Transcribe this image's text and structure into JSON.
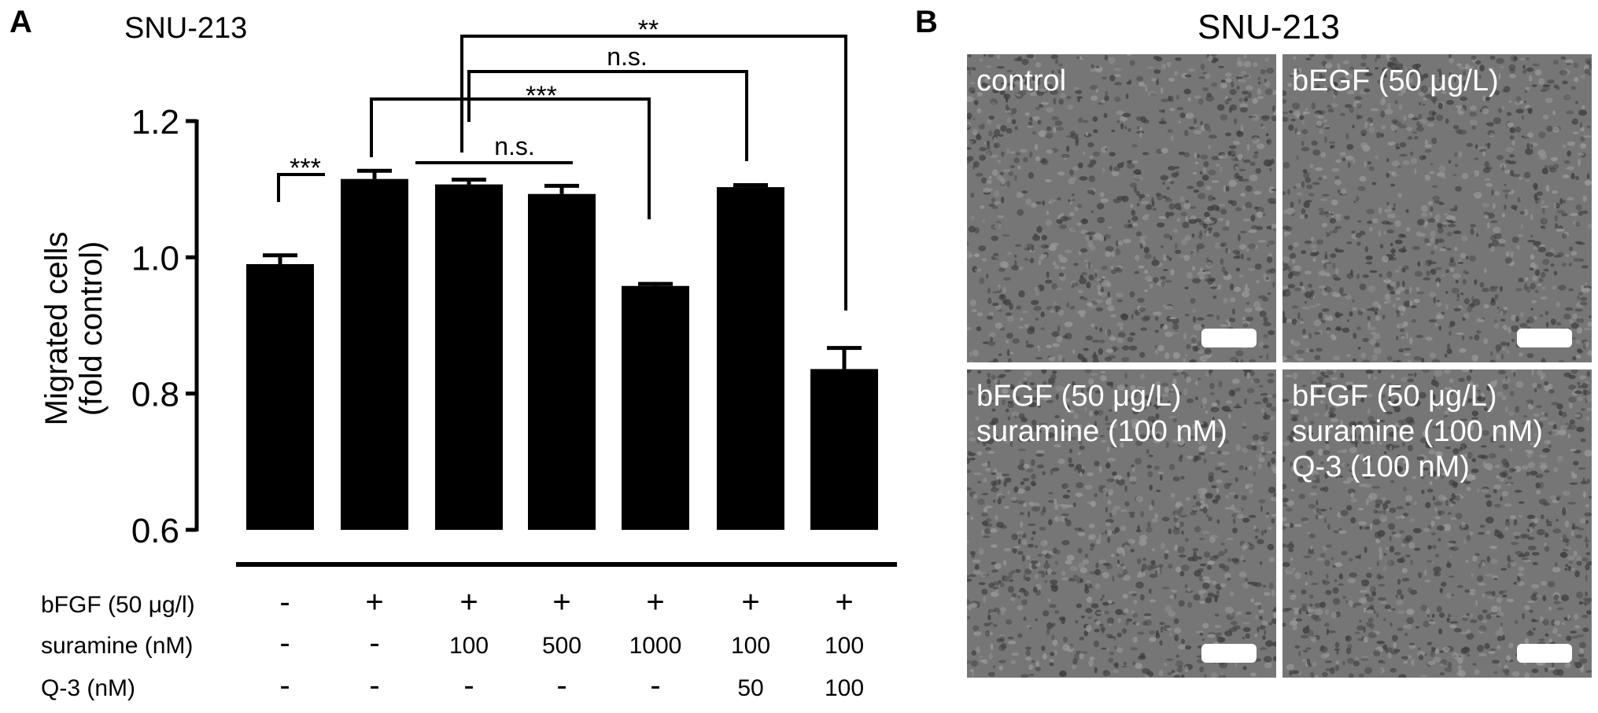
{
  "panel_a": {
    "letter": "A",
    "cell_line": "SNU-213",
    "chart_data": {
      "type": "bar",
      "title": "SNU-213",
      "ylabel": "Migrated cells\n(fold control)",
      "ylabel_lines": [
        "Migrated cells",
        "(fold control)"
      ],
      "ylim": [
        0.6,
        1.2
      ],
      "yticks": [
        "0.6",
        "0.8",
        "1.0",
        "1.2"
      ],
      "ytick_values": [
        0.6,
        0.8,
        1.0,
        1.2
      ],
      "values": [
        0.99,
        1.115,
        1.107,
        1.093,
        0.958,
        1.103,
        0.836
      ],
      "errors": [
        0.013,
        0.012,
        0.007,
        0.012,
        0.003,
        0.003,
        0.031
      ],
      "condition_rows": [
        {
          "label": "bFGF (50 μg/l)",
          "values": [
            "-",
            "+",
            "+",
            "+",
            "+",
            "+",
            "+"
          ]
        },
        {
          "label": "suramine (nM)",
          "values": [
            "-",
            "-",
            "100",
            "500",
            "1000",
            "100",
            "100"
          ]
        },
        {
          "label": "Q-3 (nM)",
          "values": [
            "-",
            "-",
            "-",
            "-",
            "-",
            "50",
            "100"
          ]
        }
      ],
      "significance": [
        {
          "groups": [
            1,
            2
          ],
          "label": "***"
        },
        {
          "groups": [
            2,
            4
          ],
          "label": "n.s."
        },
        {
          "groups": [
            2,
            5
          ],
          "label": "***"
        },
        {
          "groups": [
            3,
            6
          ],
          "label": "n.s."
        },
        {
          "groups": [
            3,
            7
          ],
          "label": "**"
        }
      ],
      "color": "#000000"
    }
  },
  "panel_b": {
    "letter": "B",
    "title": "SNU-213",
    "images": [
      {
        "label": "control"
      },
      {
        "label": "bEGF (50 μg/L)"
      },
      {
        "label": "bFGF (50 μg/L)\nsuramine (100 nM)"
      },
      {
        "label": "bFGF (50 μg/L)\nsuramine (100 nM)\nQ-3 (100 nM)"
      }
    ],
    "background_color": "#767676"
  }
}
